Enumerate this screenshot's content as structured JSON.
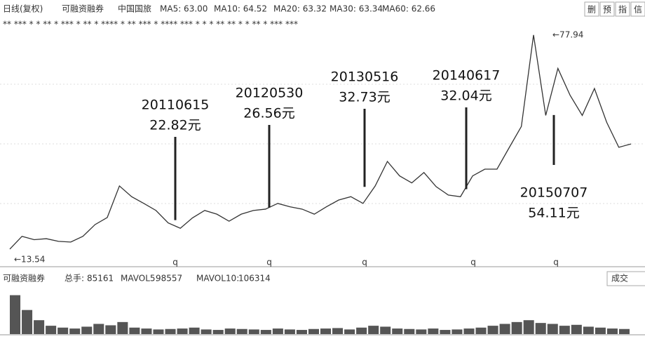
{
  "header": {
    "items": [
      "日线(复权)",
      "可融资融券",
      "中国国旅",
      "MA5: 63.00",
      "MA10: 64.52",
      "MA20: 63.32",
      "MA30: 63.34",
      "MA60: 62.66"
    ],
    "buttons": [
      "删",
      "预",
      "指",
      "信"
    ],
    "markers": "**  ***  *    *  **    *    ***   *   **  *  ****  *  **  ***  *  ****  ***  *   *    *  **  **  *   *     **  *  ***  ***"
  },
  "chart_data": {
    "type": "line",
    "categories": [
      null,
      null,
      null,
      null,
      null,
      null,
      null,
      null,
      null,
      null,
      null,
      null,
      null,
      null,
      null,
      null,
      null,
      null,
      null,
      null,
      null,
      null,
      null,
      null,
      null,
      null,
      null,
      null,
      null,
      null,
      null,
      null,
      null,
      null,
      null,
      null,
      null,
      null,
      null,
      null,
      null,
      null,
      null,
      null,
      null,
      null,
      null,
      null,
      null,
      null,
      null,
      null
    ],
    "values": [
      14.2,
      18,
      17,
      17.3,
      16.5,
      16.3,
      18,
      21.5,
      23.6,
      33,
      29.8,
      27.8,
      25.7,
      22,
      20.4,
      23.5,
      25.7,
      24.6,
      22.5,
      24.6,
      25.7,
      26.1,
      27.8,
      26.8,
      26.1,
      24.6,
      26.8,
      28.8,
      29.8,
      27.8,
      33,
      40.3,
      36,
      33.9,
      37,
      32.8,
      30.3,
      29.8,
      36,
      38,
      38,
      44.4,
      50.7,
      77.94,
      54,
      68,
      60,
      54,
      62,
      52,
      44.5,
      45.5
    ],
    "color": "#333333",
    "ylim": [
      10,
      80
    ],
    "extremes": [
      {
        "value": 77.94,
        "label": "←77.94"
      },
      {
        "value": 13.54,
        "label": "←13.54"
      }
    ],
    "annotations": [
      {
        "date": "20110615",
        "value": 22.82,
        "label": "22.82元"
      },
      {
        "date": "20120530",
        "value": 26.56,
        "label": "26.56元"
      },
      {
        "date": "20130516",
        "value": 32.73,
        "label": "32.73元"
      },
      {
        "date": "20140617",
        "value": 32.04,
        "label": "32.04元"
      },
      {
        "date": "20150707",
        "value": 54.11,
        "label": "54.11元"
      }
    ],
    "q_marks": [
      "q",
      "q",
      "q",
      "q",
      "q"
    ],
    "volume": {
      "label": "可融资融券",
      "total_label": "总手:",
      "total": 85161,
      "mavol5_label": "MAVOL5:",
      "mavol5": 98557,
      "mavol10_label": "MAVOL10:",
      "mavol10": 106314,
      "button": "成交",
      "ylim": [
        0,
        500000
      ],
      "values": [
        420000,
        260000,
        150000,
        90000,
        70000,
        60000,
        80000,
        110000,
        95000,
        130000,
        70000,
        60000,
        50000,
        55000,
        60000,
        70000,
        50000,
        45000,
        60000,
        55000,
        50000,
        45000,
        60000,
        50000,
        45000,
        55000,
        60000,
        65000,
        50000,
        70000,
        90000,
        80000,
        60000,
        55000,
        50000,
        60000,
        45000,
        50000,
        60000,
        70000,
        90000,
        110000,
        130000,
        150000,
        120000,
        110000,
        90000,
        100000,
        80000,
        70000,
        60000,
        55000
      ]
    }
  }
}
